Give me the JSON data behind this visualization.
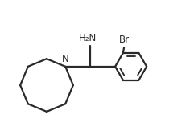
{
  "background_color": "#ffffff",
  "line_color": "#2a2a2a",
  "line_width": 1.6,
  "text_color": "#2a2a2a",
  "label_NH2": "H₂N",
  "label_N": "N",
  "label_Br": "Br",
  "figsize": [
    2.41,
    1.68
  ],
  "dpi": 100,
  "xlim": [
    0,
    10
  ],
  "ylim": [
    0,
    7
  ]
}
